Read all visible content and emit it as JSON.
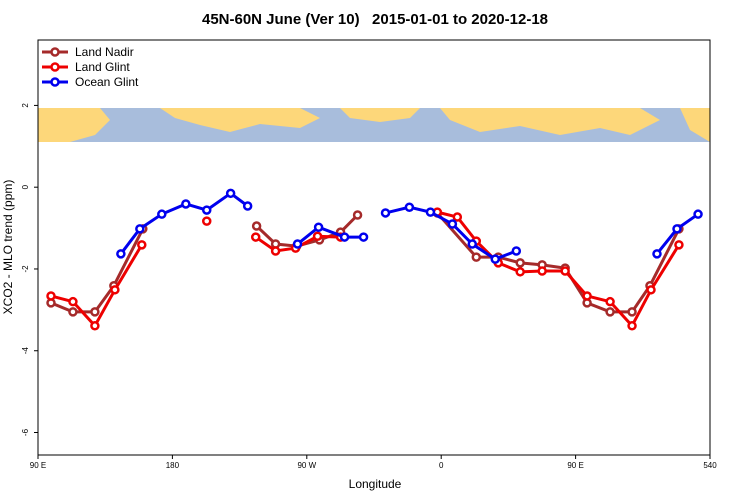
{
  "chart_data": {
    "type": "line",
    "title": "45N-60N June (Ver 10)   2015-01-01 to 2020-12-18",
    "x_label": "Longitude",
    "y_label": "XCO2 - MLO trend (ppm)",
    "xlim": [
      90,
      540
    ],
    "ylim": [
      -6.55,
      3.6
    ],
    "xticks": [
      {
        "value": 90,
        "label": "90 E"
      },
      180,
      {
        "value": 270,
        "label": "90 W"
      },
      {
        "value": 360,
        "label": "0"
      },
      {
        "value": 450,
        "label": "90 E"
      },
      540
    ],
    "yticks": [
      2,
      0,
      -2,
      -4,
      -6
    ],
    "legend": "top-left",
    "series": [
      {
        "name": "Land Nadir",
        "color": "#a52a2a",
        "x": [
          98.7,
          113.4,
          128.1,
          140.8,
          160.2,
          null,
          236.4,
          249.1,
          263.2,
          278.5,
          292.6,
          304,
          null,
          357.4,
          383.5,
          398.2,
          412.9,
          427.6,
          443,
          457.7,
          473.1,
          487.8,
          499.8,
          519.2
        ],
        "values": [
          -2.83,
          -3.05,
          -3.05,
          -2.41,
          -1.02,
          null,
          -0.95,
          -1.39,
          -1.44,
          -1.29,
          -1.1,
          -0.68,
          null,
          -0.63,
          -1.71,
          -1.71,
          -1.85,
          -1.9,
          -1.98,
          -2.83,
          -3.05,
          -3.05,
          -2.41,
          -1.02
        ]
      },
      {
        "name": "Land Glint",
        "color": "#ee0000",
        "x": [
          98.7,
          113.4,
          128.1,
          141.5,
          159.5,
          null,
          203,
          null,
          235.8,
          249.1,
          262.5,
          277.2,
          292.6,
          null,
          357.4,
          370.8,
          383.5,
          398.2,
          412.9,
          427.6,
          443,
          457.7,
          473.1,
          487.8,
          500.5,
          519.2
        ],
        "values": [
          -2.66,
          -2.8,
          -3.39,
          -2.51,
          -1.41,
          null,
          -0.83,
          null,
          -1.22,
          -1.56,
          -1.49,
          -1.2,
          -1.22,
          null,
          -0.61,
          -0.73,
          -1.32,
          -1.85,
          -2.07,
          -2.05,
          -2.05,
          -2.66,
          -2.8,
          -3.39,
          -2.51,
          -1.41
        ]
      },
      {
        "name": "Ocean Glint",
        "color": "#0000ee",
        "x": [
          145.5,
          158.2,
          172.9,
          189,
          203,
          219,
          230.4,
          null,
          263.8,
          277.9,
          295.3,
          308,
          null,
          322.7,
          338.7,
          352.8,
          367.5,
          380.8,
          396.2,
          410.3,
          null,
          504.5,
          517.9,
          532
        ],
        "values": [
          -1.63,
          -1.02,
          -0.66,
          -0.41,
          -0.56,
          -0.15,
          -0.46,
          null,
          -1.39,
          -0.98,
          -1.22,
          -1.22,
          null,
          -0.63,
          -0.49,
          -0.61,
          -0.9,
          -1.39,
          -1.76,
          -1.56,
          null,
          -1.63,
          -1.02,
          -0.66
        ]
      }
    ]
  }
}
